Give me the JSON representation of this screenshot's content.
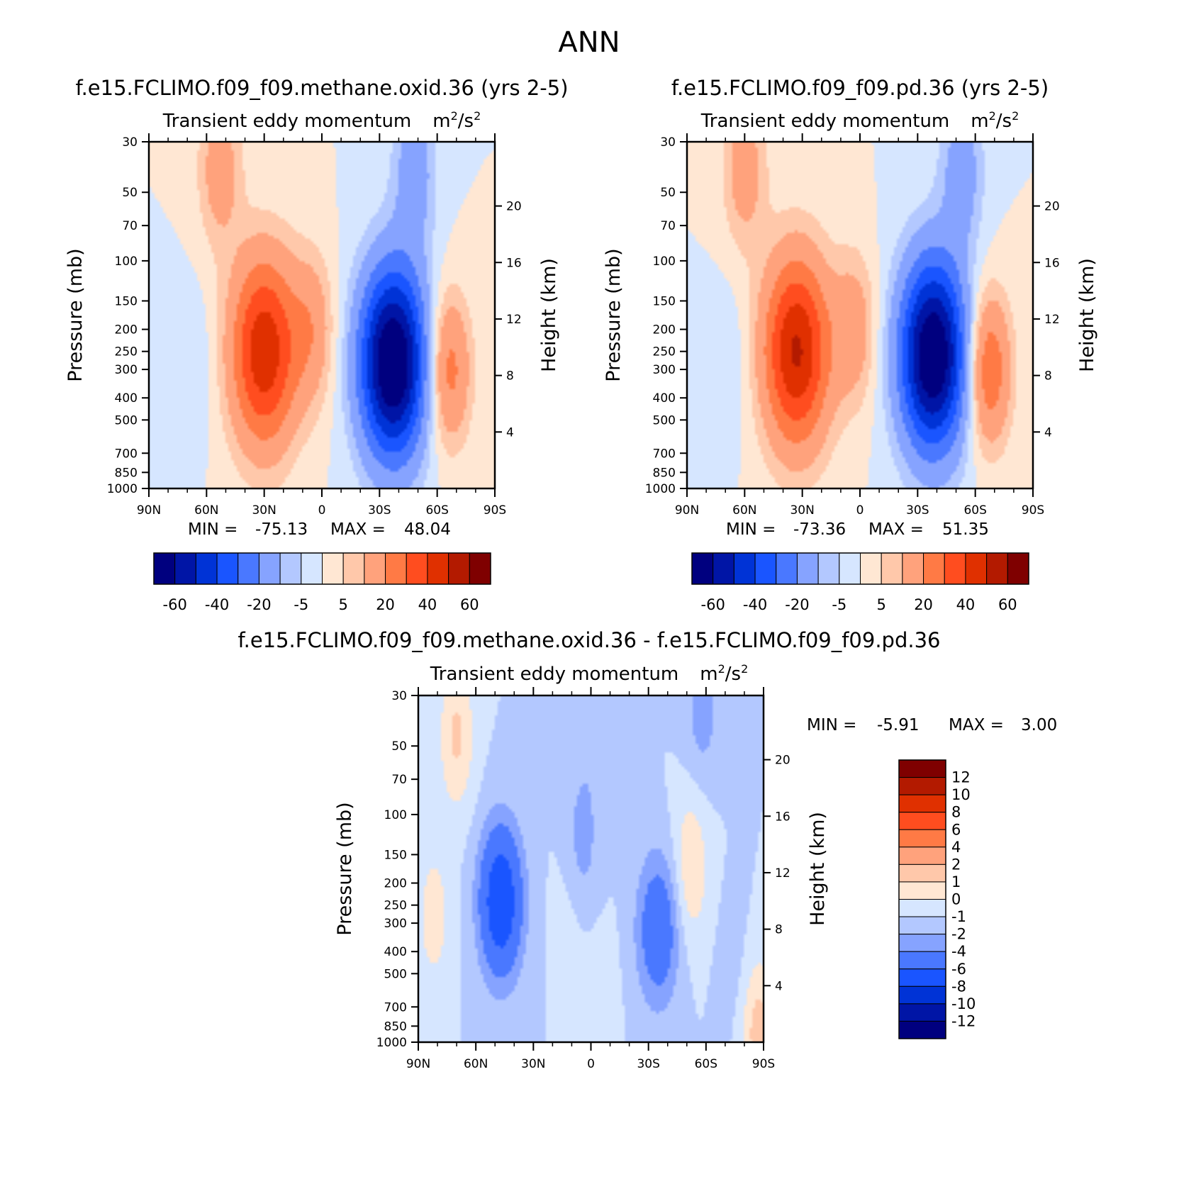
{
  "figure_title": "ANN",
  "chart_data": [
    {
      "type": "contour",
      "title": "f.e15.FCLIMO.f09_f09.methane.oxid.36 (yrs 2-5)",
      "subtitle": "Transient eddy momentum",
      "units_base": "m",
      "units_mid": "/s",
      "units_exp": "2",
      "ylabel": "Pressure (mb)",
      "ylabel_right": "Height (km)",
      "x_ticks": [
        "90N",
        "60N",
        "30N",
        "0",
        "30S",
        "60S",
        "90S"
      ],
      "y_ticks": [
        "30",
        "50",
        "70",
        "100",
        "150",
        "200",
        "250",
        "300",
        "400",
        "500",
        "700",
        "850",
        "1000"
      ],
      "y_ticks_right": [
        "20",
        "16",
        "12",
        "8",
        "4"
      ],
      "min_label": "MIN =",
      "min": "-75.13",
      "max_label": "MAX =",
      "max": "48.04",
      "colorbar_levels": [
        "-60",
        "-40",
        "-20",
        "-5",
        "5",
        "20",
        "40",
        "60"
      ],
      "features": [
        {
          "lat": 30,
          "p": 250,
          "value": 48.04
        },
        {
          "lat": -37,
          "p": 280,
          "value": -75.13
        },
        {
          "lat": -66,
          "p": 300,
          "value": 25
        },
        {
          "lat": 68,
          "p": 300,
          "value": -5
        },
        {
          "lat": 5,
          "p": 200,
          "value": 15
        },
        {
          "lat": 53,
          "p": 40,
          "value": 15
        },
        {
          "lat": -48,
          "p": 40,
          "value": -15
        }
      ]
    },
    {
      "type": "contour",
      "title": "f.e15.FCLIMO.f09_f09.pd.36 (yrs 2-5)",
      "subtitle": "Transient eddy momentum",
      "units_base": "m",
      "units_mid": "/s",
      "units_exp": "2",
      "ylabel": "Pressure (mb)",
      "ylabel_right": "Height (km)",
      "x_ticks": [
        "90N",
        "60N",
        "30N",
        "0",
        "30S",
        "60S",
        "90S"
      ],
      "y_ticks": [
        "30",
        "50",
        "70",
        "100",
        "150",
        "200",
        "250",
        "300",
        "400",
        "500",
        "700",
        "850",
        "1000"
      ],
      "y_ticks_right": [
        "20",
        "16",
        "12",
        "8",
        "4"
      ],
      "min_label": "MIN =",
      "min": "-73.36",
      "max_label": "MAX =",
      "max": "51.35",
      "colorbar_levels": [
        "-60",
        "-40",
        "-20",
        "-5",
        "5",
        "20",
        "40",
        "60"
      ],
      "features": [
        {
          "lat": 33,
          "p": 250,
          "value": 51.35
        },
        {
          "lat": -38,
          "p": 260,
          "value": -73.36
        },
        {
          "lat": -67,
          "p": 300,
          "value": 30
        },
        {
          "lat": 70,
          "p": 300,
          "value": -5
        },
        {
          "lat": 3,
          "p": 200,
          "value": 15
        },
        {
          "lat": 60,
          "p": 40,
          "value": 15
        },
        {
          "lat": -53,
          "p": 40,
          "value": -15
        }
      ]
    },
    {
      "type": "contour",
      "title": "f.e15.FCLIMO.f09_f09.methane.oxid.36 - f.e15.FCLIMO.f09_f09.pd.36",
      "subtitle": "Transient eddy momentum",
      "units_base": "m",
      "units_mid": "/s",
      "units_exp": "2",
      "ylabel": "Pressure (mb)",
      "ylabel_right": "Height (km)",
      "x_ticks": [
        "90N",
        "60N",
        "30N",
        "0",
        "30S",
        "60S",
        "90S"
      ],
      "y_ticks": [
        "30",
        "50",
        "70",
        "100",
        "150",
        "200",
        "250",
        "300",
        "400",
        "500",
        "700",
        "850",
        "1000"
      ],
      "y_ticks_right": [
        "20",
        "16",
        "12",
        "8",
        "4"
      ],
      "min_label": "MIN =",
      "min": "-5.91",
      "max_label": "MAX =",
      "max": "3.00",
      "colorbar_levels": [
        "12",
        "10",
        "8",
        "6",
        "4",
        "2",
        "1",
        "0",
        "-1",
        "-2",
        "-4",
        "-6",
        "-8",
        "-10",
        "-12"
      ],
      "features": [
        {
          "lat": 47,
          "p": 240,
          "value": -5.91
        },
        {
          "lat": -35,
          "p": 320,
          "value": -3.5
        },
        {
          "lat": 70,
          "p": 45,
          "value": 2.2
        },
        {
          "lat": -52,
          "p": 170,
          "value": 2
        },
        {
          "lat": 82,
          "p": 280,
          "value": 1.5
        },
        {
          "lat": 10,
          "p": 250,
          "value": 0.6
        },
        {
          "lat": -5,
          "p": 600,
          "value": 0.5
        },
        {
          "lat": 0,
          "p": 50,
          "value": -0.5
        },
        {
          "lat": -75,
          "p": 500,
          "value": -0.5
        },
        {
          "lat": 5,
          "p": 140,
          "value": -1.5
        },
        {
          "lat": -58,
          "p": 35,
          "value": -1.5
        },
        {
          "lat": -87,
          "p": 900,
          "value": 2.5
        }
      ]
    }
  ],
  "colors": {
    "scale": [
      "#00007f",
      "#0015a6",
      "#0033d6",
      "#1a55ff",
      "#4a78ff",
      "#86a3ff",
      "#b3c8ff",
      "#d6e6ff",
      "#ffe7d3",
      "#ffc8aa",
      "#ffa27c",
      "#ff7a45",
      "#ff4d1f",
      "#e03000",
      "#b31a00",
      "#7f0000"
    ]
  }
}
